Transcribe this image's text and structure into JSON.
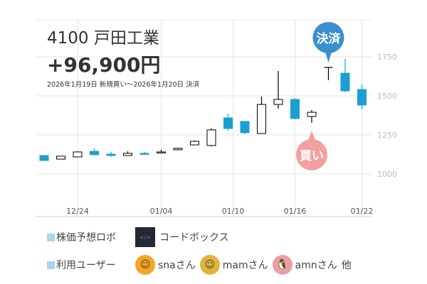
{
  "header": {
    "title": "4100 戸田工業",
    "profit": "+96,900円",
    "period": "2026年1月19日 新規買い～2026年1月20日 決済"
  },
  "markers": {
    "sell_label": "決済",
    "buy_label": "買い",
    "sell_color": "#3a8fd1",
    "buy_color": "#f4a0a0"
  },
  "chart_data": {
    "type": "candlestick",
    "ylim": [
      800,
      1850
    ],
    "y_ticks": [
      1000,
      1250,
      1500,
      1750
    ],
    "x_tick_labels": [
      {
        "index": 2,
        "label": "12/24"
      },
      {
        "index": 7,
        "label": "01/04"
      },
      {
        "index": 11.3,
        "label": "01/10"
      },
      {
        "index": 15,
        "label": "01/16"
      },
      {
        "index": 19,
        "label": "01/22"
      }
    ],
    "up_color": "#ffffff",
    "down_color": "#1a9fd0",
    "candles": [
      {
        "o": 1118,
        "h": 1118,
        "l": 1086,
        "c": 1086
      },
      {
        "o": 1095,
        "h": 1114,
        "l": 1095,
        "c": 1114
      },
      {
        "o": 1109,
        "h": 1145,
        "l": 1109,
        "c": 1141
      },
      {
        "o": 1145,
        "h": 1163,
        "l": 1123,
        "c": 1123
      },
      {
        "o": 1127,
        "h": 1141,
        "l": 1109,
        "c": 1118
      },
      {
        "o": 1118,
        "h": 1145,
        "l": 1118,
        "c": 1132
      },
      {
        "o": 1132,
        "h": 1141,
        "l": 1123,
        "c": 1127
      },
      {
        "o": 1136,
        "h": 1155,
        "l": 1136,
        "c": 1141
      },
      {
        "o": 1155,
        "h": 1168,
        "l": 1155,
        "c": 1164
      },
      {
        "o": 1186,
        "h": 1214,
        "l": 1186,
        "c": 1209
      },
      {
        "o": 1182,
        "h": 1291,
        "l": 1177,
        "c": 1282
      },
      {
        "o": 1359,
        "h": 1386,
        "l": 1277,
        "c": 1291
      },
      {
        "o": 1336,
        "h": 1336,
        "l": 1255,
        "c": 1264
      },
      {
        "o": 1259,
        "h": 1495,
        "l": 1259,
        "c": 1445
      },
      {
        "o": 1445,
        "h": 1659,
        "l": 1418,
        "c": 1477
      },
      {
        "o": 1477,
        "h": 1486,
        "l": 1350,
        "c": 1355
      },
      {
        "o": 1368,
        "h": 1409,
        "l": 1327,
        "c": 1395
      },
      {
        "o": 1682,
        "h": 1682,
        "l": 1600,
        "c": 1682
      },
      {
        "o": 1645,
        "h": 1736,
        "l": 1523,
        "c": 1532
      },
      {
        "o": 1541,
        "h": 1573,
        "l": 1414,
        "c": 1441
      }
    ],
    "buy_index": 16,
    "sell_index": 17
  },
  "footer": {
    "robo_label": "株価予想ロボ",
    "robo_name": "コードボックス",
    "robo_logo_text": "</>",
    "users_label": "利用ユーザー",
    "users": [
      {
        "name": "snaさん",
        "avatar_color": "#f5a623"
      },
      {
        "name": "mamさん",
        "avatar_color": "#e3b23c"
      },
      {
        "name": "amnさん",
        "avatar_color": "#e9a0a0"
      }
    ],
    "others": "他"
  }
}
